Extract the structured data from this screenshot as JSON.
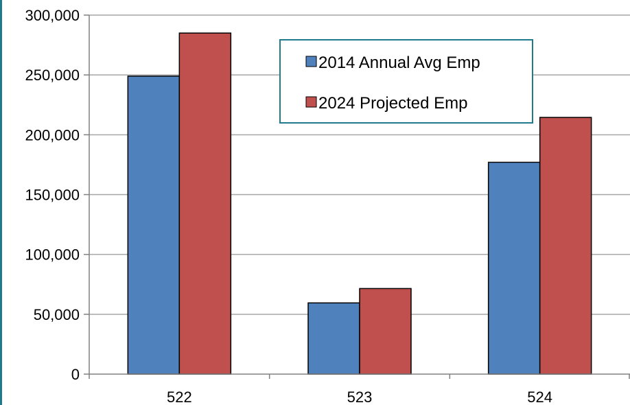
{
  "chart_data": {
    "type": "bar",
    "categories": [
      "522",
      "523",
      "524"
    ],
    "series": [
      {
        "name": "2014 Annual Avg Emp",
        "color": "#4f81bd",
        "values": [
          249000,
          59500,
          177000
        ]
      },
      {
        "name": "2024 Projected Emp",
        "color": "#c0504d",
        "values": [
          285000,
          71500,
          214500
        ]
      }
    ],
    "ylim": [
      0,
      300000
    ],
    "yticks": [
      0,
      50000,
      100000,
      150000,
      200000,
      250000,
      300000
    ],
    "ytick_labels": [
      "0",
      "50,000",
      "100,000",
      "150,000",
      "200,000",
      "250,000",
      "300,000"
    ],
    "grid": true,
    "legend_position": "top-center",
    "legend_border_color": "#1f7a8c"
  }
}
